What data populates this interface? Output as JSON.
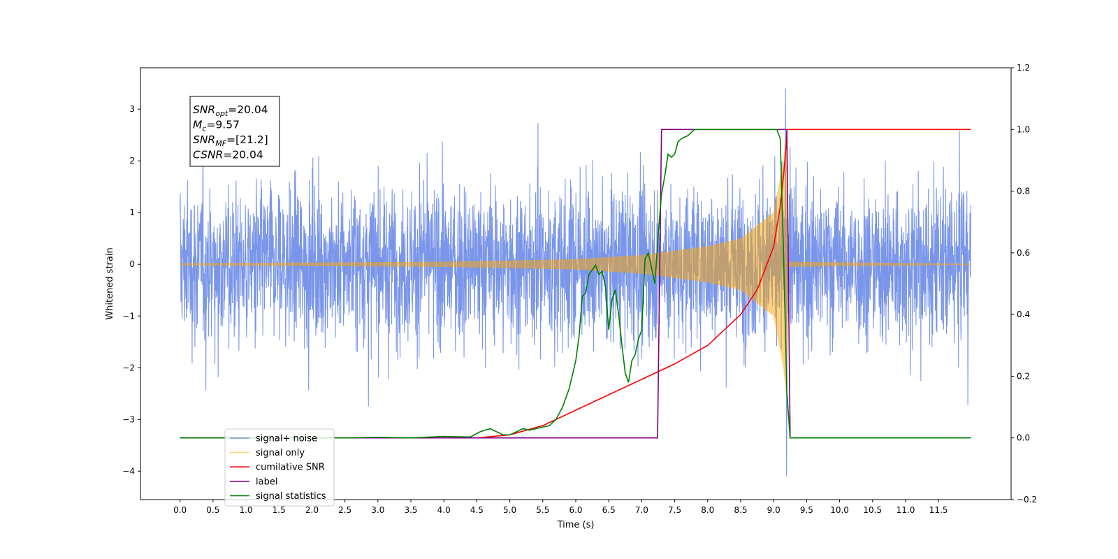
{
  "chart_data": {
    "type": "line",
    "xlabel": "Time (s)",
    "ylabel": "Whitened strain",
    "xlim": [
      -0.6,
      12.6
    ],
    "ylim": [
      -4.55,
      3.8
    ],
    "y2lim": [
      -0.2,
      1.2
    ],
    "x_ticks": [
      0.0,
      0.5,
      1.0,
      1.5,
      2.0,
      2.5,
      3.0,
      3.5,
      4.0,
      4.5,
      5.0,
      5.5,
      6.0,
      6.5,
      7.0,
      7.5,
      8.0,
      8.5,
      9.0,
      9.5,
      10.0,
      10.5,
      11.0,
      11.5
    ],
    "x_tick_labels": [
      "0.0",
      "0.5",
      "1.0",
      "1.5",
      "2.0",
      "2.5",
      "3.0",
      "3.5",
      "4.0",
      "4.5",
      "5.0",
      "5.5",
      "6.0",
      "6.5",
      "7.0",
      "7.5",
      "8.0",
      "8.5",
      "9.0",
      "9.5",
      "10.0",
      "10.5",
      "11.0",
      "11.5"
    ],
    "y_ticks": [
      3,
      2,
      1,
      0,
      -1,
      -2,
      -3,
      -4
    ],
    "y_tick_labels": [
      "3",
      "2",
      "1",
      "0",
      "−1",
      "−2",
      "−3",
      "−4"
    ],
    "y2_ticks": [
      1.2,
      1.0,
      0.8,
      0.6,
      0.4,
      0.2,
      0.0,
      -0.2
    ],
    "y2_tick_labels": [
      "1.2",
      "1.0",
      "0.8",
      "0.6",
      "0.4",
      "0.2",
      "0.0",
      "−0.2"
    ],
    "grid": false,
    "legend_position": "lower-left",
    "info_box": {
      "lines": [
        {
          "main": "SNR",
          "sub": "opt",
          "rest": "=20.04"
        },
        {
          "main": "M",
          "sub": "c",
          "rest": "=9.57"
        },
        {
          "main": "SNR",
          "sub": "MF",
          "rest": "=[21.2]"
        },
        {
          "main": "CSNR",
          "sub": "",
          "rest": "=20.04"
        }
      ]
    },
    "series": [
      {
        "name": "signal+ noise",
        "color": "#4169e1",
        "alpha": 0.7,
        "axis": "left",
        "kind": "noise",
        "x_range": [
          0.0,
          11.99
        ],
        "typical_amplitude": 1.3,
        "min": -4.1,
        "max": 3.4,
        "spike_at": 9.18
      },
      {
        "name": "signal only",
        "color": "#ffa500",
        "alpha": 0.5,
        "axis": "left",
        "kind": "chirp",
        "x_range": [
          0.0,
          11.99
        ],
        "merger_time": 9.2,
        "envelope": [
          [
            0.0,
            0.02
          ],
          [
            4.0,
            0.05
          ],
          [
            6.0,
            0.1
          ],
          [
            7.0,
            0.18
          ],
          [
            8.0,
            0.35
          ],
          [
            8.5,
            0.5
          ],
          [
            9.0,
            1.0
          ],
          [
            9.15,
            2.0
          ],
          [
            9.2,
            2.6
          ],
          [
            9.22,
            0.05
          ],
          [
            11.99,
            0.01
          ]
        ]
      },
      {
        "name": "cumilative SNR",
        "color": "#ff0000",
        "axis": "right",
        "x": [
          0.0,
          4.5,
          5.0,
          5.5,
          6.0,
          6.5,
          7.0,
          7.5,
          8.0,
          8.5,
          8.75,
          9.0,
          9.1,
          9.15,
          9.19,
          9.2,
          11.99
        ],
        "y": [
          0.0,
          0.0,
          0.01,
          0.04,
          0.09,
          0.14,
          0.19,
          0.24,
          0.3,
          0.4,
          0.48,
          0.62,
          0.75,
          0.85,
          0.95,
          1.0,
          1.0
        ]
      },
      {
        "name": "label",
        "color": "#800080",
        "axis": "right",
        "x": [
          0.0,
          7.24,
          7.3,
          9.2,
          9.25,
          11.99
        ],
        "y": [
          0.0,
          0.0,
          1.0,
          1.0,
          0.0,
          0.0
        ]
      },
      {
        "name": "signal statistics",
        "color": "#008000",
        "axis": "right",
        "x": [
          0.0,
          2.5,
          3.0,
          3.5,
          4.0,
          4.4,
          4.55,
          4.7,
          4.8,
          4.9,
          5.0,
          5.1,
          5.2,
          5.3,
          5.4,
          5.5,
          5.6,
          5.7,
          5.8,
          5.9,
          6.0,
          6.05,
          6.1,
          6.15,
          6.2,
          6.3,
          6.35,
          6.4,
          6.45,
          6.5,
          6.55,
          6.6,
          6.65,
          6.7,
          6.75,
          6.8,
          6.85,
          6.9,
          6.95,
          7.0,
          7.05,
          7.1,
          7.15,
          7.2,
          7.25,
          7.3,
          7.35,
          7.4,
          7.45,
          7.5,
          7.55,
          7.6,
          7.7,
          7.8,
          7.9,
          8.0,
          9.05,
          9.1,
          9.15,
          9.2,
          9.25,
          11.99
        ],
        "y": [
          0.0,
          0.0,
          0.002,
          0.0,
          0.005,
          0.003,
          0.02,
          0.03,
          0.02,
          0.01,
          0.01,
          0.02,
          0.03,
          0.025,
          0.03,
          0.035,
          0.04,
          0.06,
          0.1,
          0.16,
          0.25,
          0.33,
          0.46,
          0.47,
          0.53,
          0.56,
          0.53,
          0.54,
          0.49,
          0.35,
          0.45,
          0.48,
          0.4,
          0.3,
          0.21,
          0.18,
          0.25,
          0.27,
          0.32,
          0.35,
          0.58,
          0.6,
          0.55,
          0.5,
          0.66,
          0.79,
          0.85,
          0.92,
          0.91,
          0.92,
          0.96,
          0.97,
          0.98,
          1.0,
          1.0,
          1.0,
          1.0,
          0.97,
          0.6,
          0.15,
          0.0,
          0.0
        ]
      }
    ],
    "legend_entries": [
      "signal+ noise",
      "signal only",
      "cumilative SNR",
      "label",
      "signal statistics"
    ]
  }
}
